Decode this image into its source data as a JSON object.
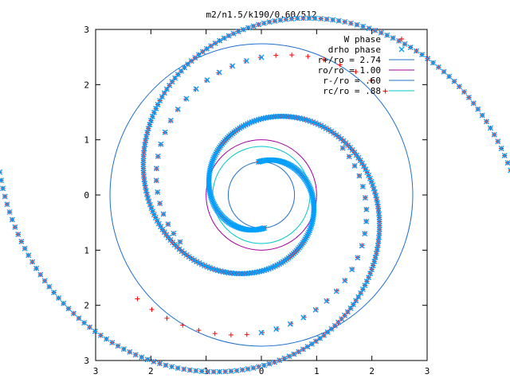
{
  "chart_data": {
    "type": "scatter",
    "title": "m2/n1.5/k190/0.60/512",
    "xlabel": "",
    "ylabel": "",
    "xlim": [
      -3,
      3
    ],
    "ylim": [
      -3,
      3
    ],
    "x_ticks": [
      -3,
      -2,
      -1,
      0,
      1,
      2,
      3
    ],
    "y_ticks": [
      -3,
      -2,
      -1,
      0,
      1,
      2,
      3
    ],
    "x_tick_labels": [
      "3",
      "2",
      "1",
      "0",
      "1",
      "2",
      "3"
    ],
    "y_tick_labels": [
      "3",
      "2",
      "1",
      "0",
      "1",
      "2",
      "3"
    ],
    "grid": false,
    "legend_position": "top-right",
    "series": [
      {
        "name": "W phase",
        "kind": "points",
        "marker": "plus",
        "color": "#ff0000",
        "arms": [
          {
            "r0": 0.6,
            "theta0_deg": 95,
            "turn_deg": 460,
            "growth": 0.0045,
            "n": 260
          },
          {
            "r0": 0.6,
            "theta0_deg": 275,
            "turn_deg": 460,
            "growth": 0.0045,
            "n": 260
          }
        ],
        "outer_arms": [
          {
            "r0": 1.7,
            "theta0_deg": 30,
            "turn_deg": 170,
            "growth": 0.0032,
            "n": 28
          },
          {
            "r0": 1.7,
            "theta0_deg": 210,
            "turn_deg": 170,
            "growth": 0.0032,
            "n": 28
          }
        ]
      },
      {
        "name": "drho phase",
        "kind": "points",
        "marker": "cross",
        "color": "#00a0ff",
        "arms": [
          {
            "r0": 0.6,
            "theta0_deg": 95,
            "turn_deg": 460,
            "growth": 0.0045,
            "n": 260
          },
          {
            "r0": 0.6,
            "theta0_deg": 275,
            "turn_deg": 460,
            "growth": 0.0045,
            "n": 260
          }
        ],
        "outer_arms": [
          {
            "r0": 1.7,
            "theta0_deg": 30,
            "turn_deg": 120,
            "growth": 0.0032,
            "n": 20
          },
          {
            "r0": 1.7,
            "theta0_deg": 210,
            "turn_deg": 120,
            "growth": 0.0032,
            "n": 20
          }
        ]
      },
      {
        "name": "r+/ro = 2.74",
        "kind": "circle",
        "radius": 2.74,
        "color": "#1f6fcf"
      },
      {
        "name": "ro/ro = 1.00",
        "kind": "circle",
        "radius": 1.0,
        "color": "#a000a0"
      },
      {
        "name": "r-/ro = .60",
        "kind": "circle",
        "radius": 0.6,
        "color": "#1f6fcf"
      },
      {
        "name": "rc/ro = .88",
        "kind": "circle",
        "radius": 0.88,
        "color": "#00c8c8"
      }
    ]
  }
}
